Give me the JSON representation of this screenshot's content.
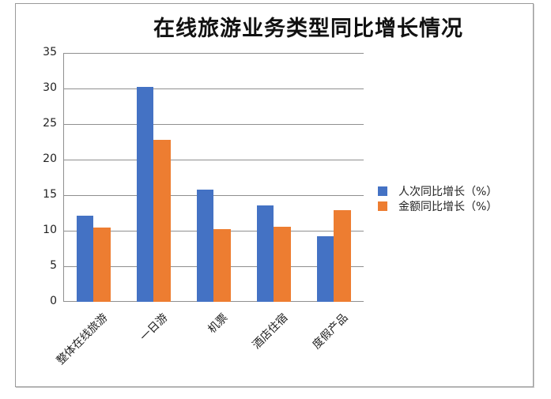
{
  "chart_data": {
    "type": "bar",
    "title": "在线旅游业务类型同比增长情况",
    "xlabel": "",
    "ylabel": "",
    "ylim": [
      0,
      35
    ],
    "yticks": [
      0,
      5,
      10,
      15,
      20,
      25,
      30,
      35
    ],
    "grid": true,
    "legend_position": "right",
    "categories": [
      "整体在线旅游",
      "一日游",
      "机票",
      "酒店住宿",
      "度假产品"
    ],
    "series": [
      {
        "name": "人次同比增长（%）",
        "color": "#4472C4",
        "values": [
          12.1,
          30.2,
          15.8,
          13.6,
          9.2
        ]
      },
      {
        "name": "金额同比增长（%）",
        "color": "#ED7D31",
        "values": [
          10.5,
          22.8,
          10.2,
          10.6,
          12.9
        ]
      }
    ]
  }
}
